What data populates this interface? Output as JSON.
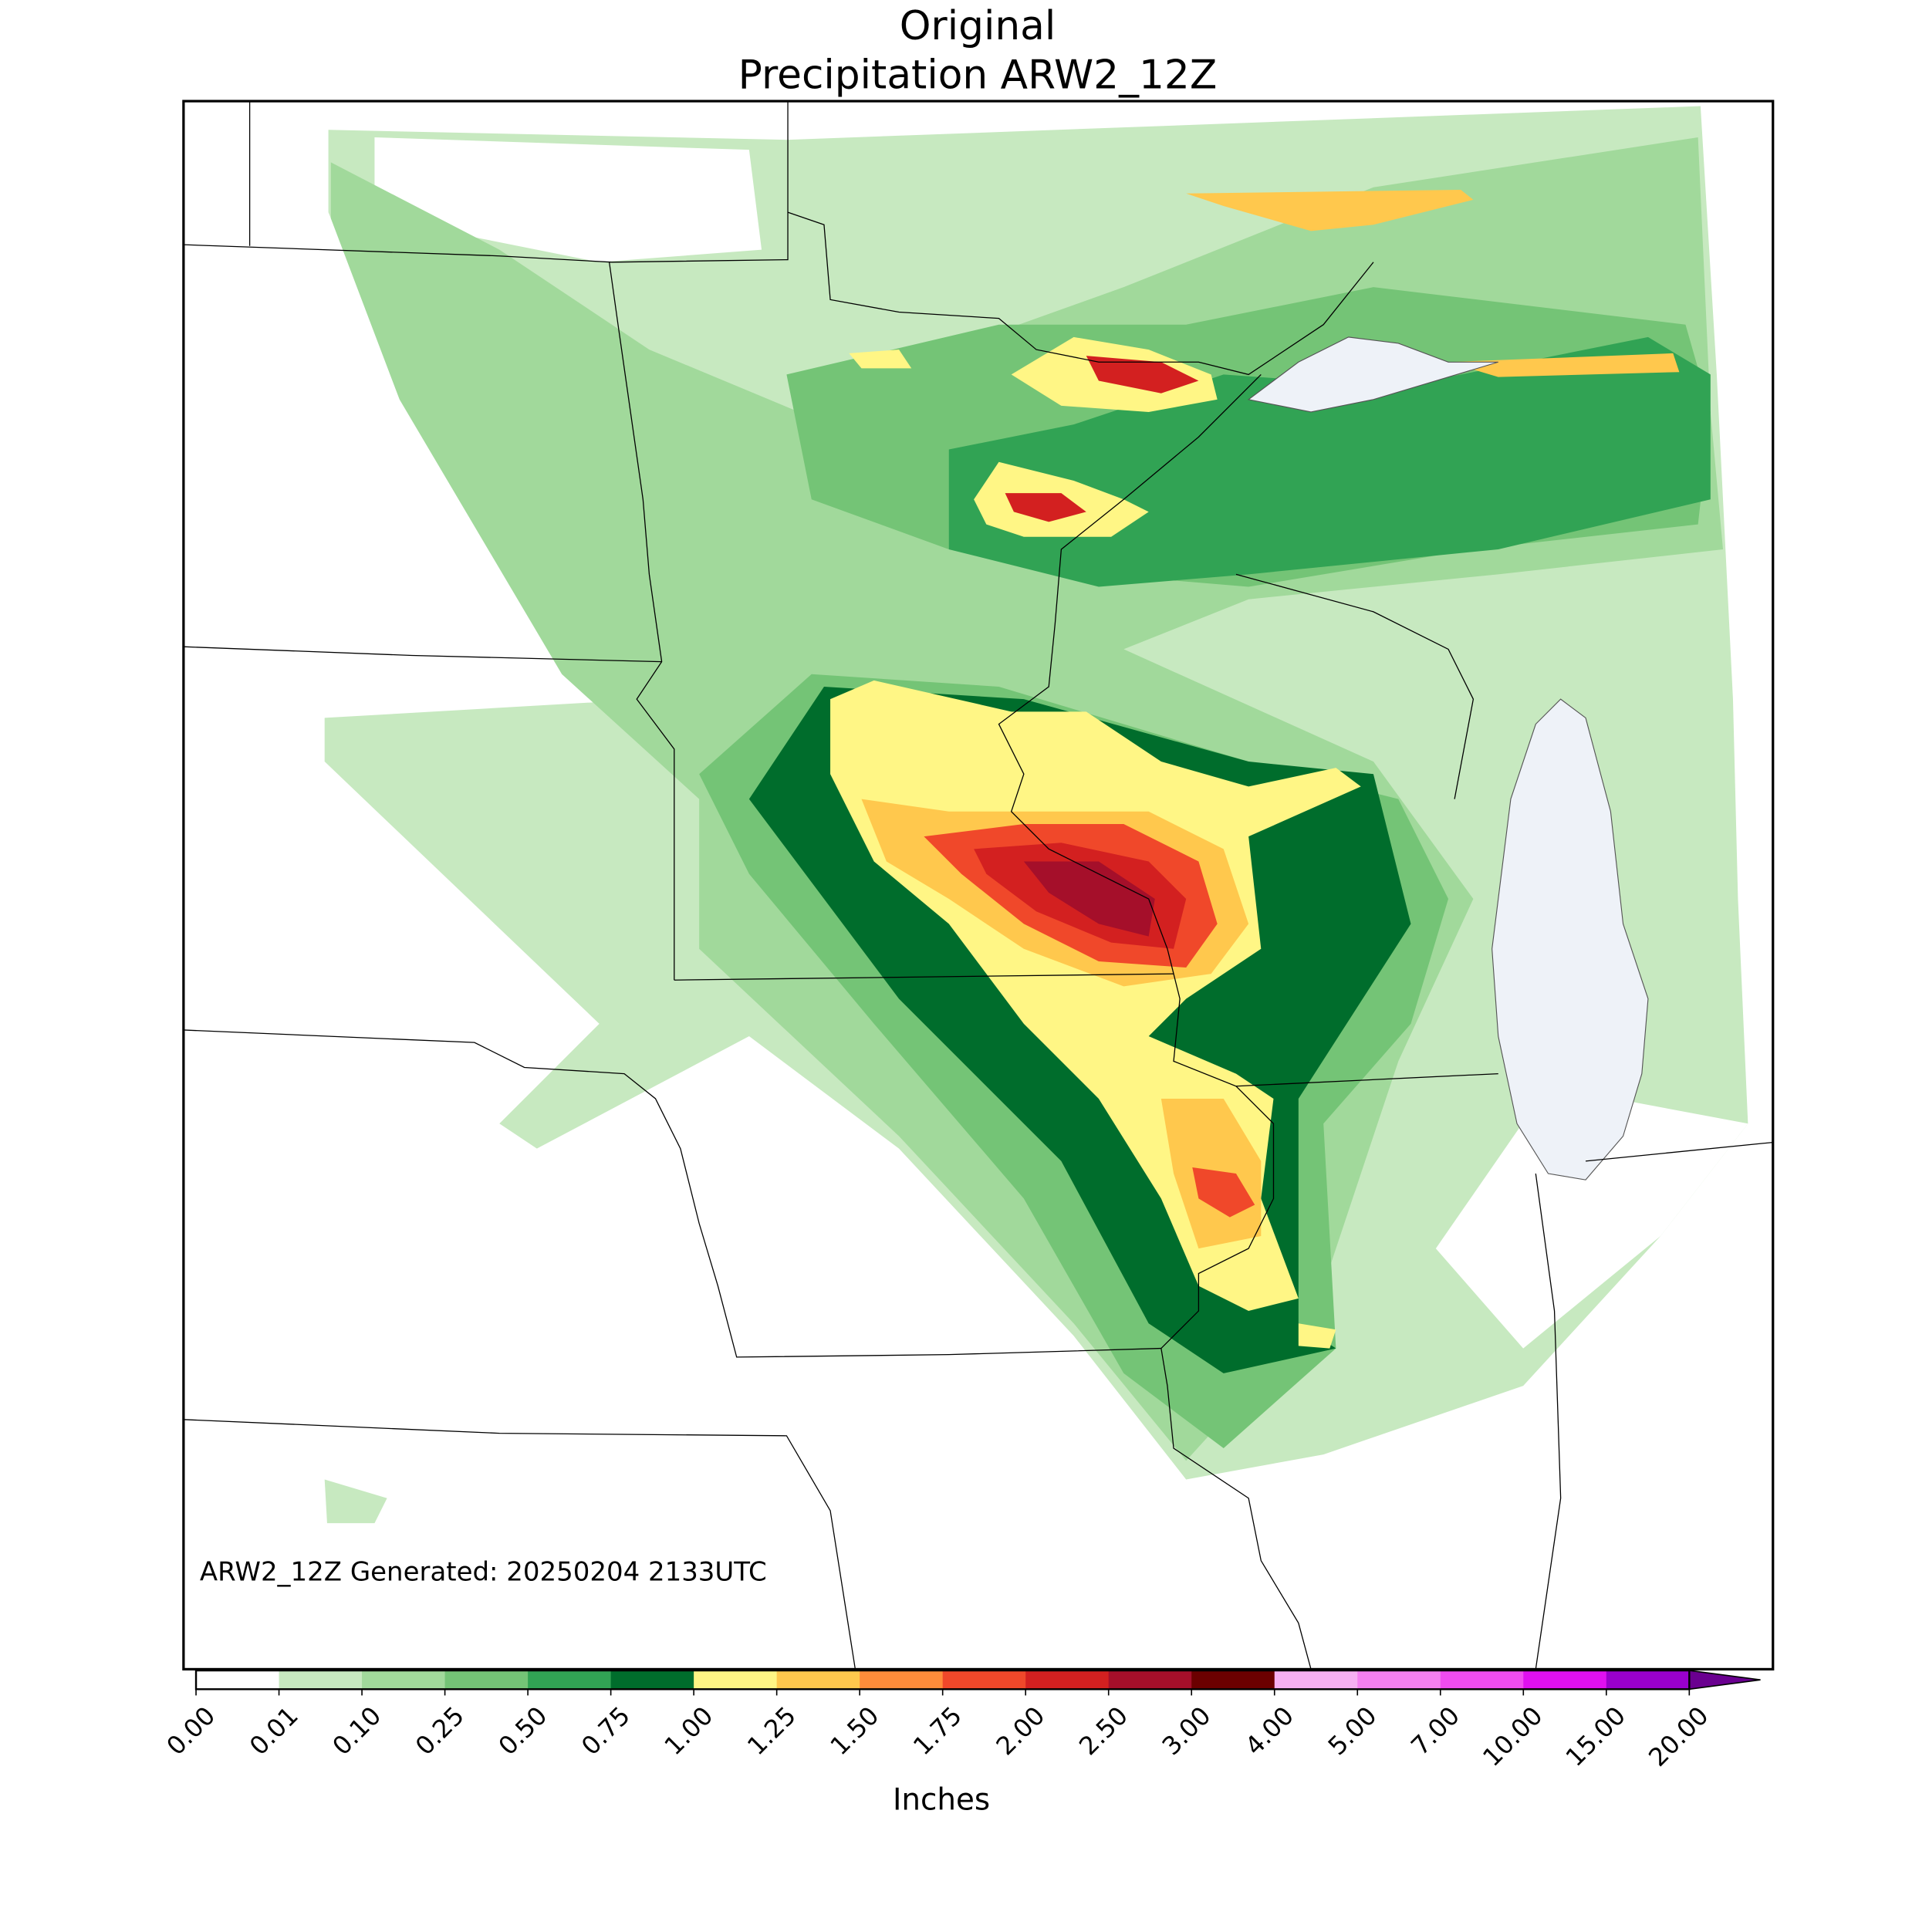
{
  "title": [
    "Original",
    "Precipitation ARW2_12Z"
  ],
  "annotation": "ARW2_12Z Generated: 20250204 2133UTC",
  "colorbar": {
    "label": "Inches",
    "ticks": [
      "0.00",
      "0.01",
      "0.10",
      "0.25",
      "0.50",
      "0.75",
      "1.00",
      "1.25",
      "1.50",
      "1.75",
      "2.00",
      "2.50",
      "3.00",
      "4.00",
      "5.00",
      "7.00",
      "10.00",
      "15.00",
      "20.00"
    ],
    "colors": [
      "#ffffff",
      "#c7e9c0",
      "#a1d99b",
      "#74c476",
      "#31a354",
      "#006d2c",
      "#fff685",
      "#ffc84d",
      "#ff8c3a",
      "#f0482a",
      "#d32020",
      "#a50f2a",
      "#6b0000",
      "#f7b0f2",
      "#f580f0",
      "#f04cf0",
      "#e010f0",
      "#9900cc"
    ],
    "extend_color": "#6a0090"
  }
}
